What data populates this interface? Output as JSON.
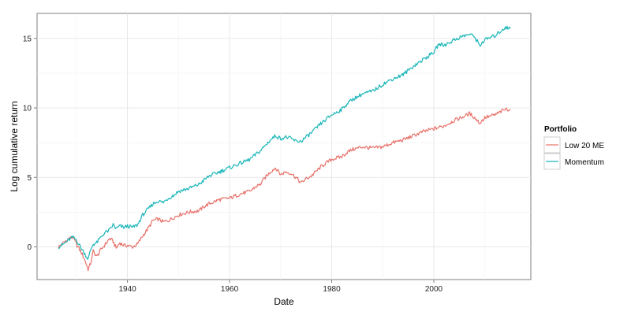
{
  "chart_data": {
    "type": "line",
    "xlabel": "Date",
    "ylabel": "Log cumulative return",
    "xlim": [
      1922.3,
      2019.0
    ],
    "ylim": [
      -2.35,
      16.8
    ],
    "x_ticks": [
      1940,
      1960,
      1980,
      2000
    ],
    "y_ticks": [
      0,
      5,
      10,
      15
    ],
    "grid": true,
    "legend": {
      "title": "Portfolio",
      "placement": "right"
    },
    "series": [
      {
        "name": "Low 20 ME",
        "color": "#e8716a",
        "points": [
          [
            1926.5,
            0.0
          ],
          [
            1927.5,
            0.3
          ],
          [
            1928.5,
            0.6
          ],
          [
            1929.3,
            0.7
          ],
          [
            1930.0,
            0.2
          ],
          [
            1930.8,
            -0.3
          ],
          [
            1931.5,
            -0.8
          ],
          [
            1932.3,
            -1.6
          ],
          [
            1932.8,
            -1.2
          ],
          [
            1933.3,
            -0.3
          ],
          [
            1934.0,
            -0.7
          ],
          [
            1934.8,
            -0.2
          ],
          [
            1935.5,
            0.1
          ],
          [
            1936.5,
            0.6
          ],
          [
            1937.2,
            0.4
          ],
          [
            1937.8,
            -0.1
          ],
          [
            1938.5,
            0.3
          ],
          [
            1939.3,
            0.1
          ],
          [
            1940.0,
            0.1
          ],
          [
            1941.0,
            0.0
          ],
          [
            1942.0,
            0.2
          ],
          [
            1943.0,
            0.8
          ],
          [
            1944.0,
            1.3
          ],
          [
            1945.0,
            1.9
          ],
          [
            1946.0,
            2.0
          ],
          [
            1947.0,
            1.8
          ],
          [
            1948.0,
            1.9
          ],
          [
            1949.0,
            2.1
          ],
          [
            1950.0,
            2.3
          ],
          [
            1952.0,
            2.5
          ],
          [
            1954.0,
            2.6
          ],
          [
            1955.0,
            2.9
          ],
          [
            1956.0,
            3.1
          ],
          [
            1958.0,
            3.4
          ],
          [
            1960.0,
            3.5
          ],
          [
            1962.0,
            3.8
          ],
          [
            1964.0,
            4.0
          ],
          [
            1965.0,
            4.3
          ],
          [
            1966.0,
            4.5
          ],
          [
            1967.0,
            5.0
          ],
          [
            1968.0,
            5.4
          ],
          [
            1969.0,
            5.7
          ],
          [
            1970.0,
            5.2
          ],
          [
            1971.0,
            5.4
          ],
          [
            1972.0,
            5.3
          ],
          [
            1973.0,
            5.0
          ],
          [
            1974.0,
            4.6
          ],
          [
            1975.0,
            4.9
          ],
          [
            1976.0,
            5.1
          ],
          [
            1978.0,
            5.8
          ],
          [
            1980.0,
            6.3
          ],
          [
            1982.0,
            6.5
          ],
          [
            1983.0,
            6.8
          ],
          [
            1984.0,
            7.0
          ],
          [
            1986.0,
            7.2
          ],
          [
            1988.0,
            7.1
          ],
          [
            1990.0,
            7.2
          ],
          [
            1992.0,
            7.5
          ],
          [
            1994.0,
            7.7
          ],
          [
            1996.0,
            8.0
          ],
          [
            1998.0,
            8.3
          ],
          [
            2000.0,
            8.5
          ],
          [
            2002.0,
            8.7
          ],
          [
            2004.0,
            9.1
          ],
          [
            2006.0,
            9.4
          ],
          [
            2007.0,
            9.6
          ],
          [
            2008.0,
            9.3
          ],
          [
            2009.0,
            8.9
          ],
          [
            2010.0,
            9.3
          ],
          [
            2012.0,
            9.5
          ],
          [
            2013.0,
            9.7
          ],
          [
            2014.0,
            9.9
          ],
          [
            2015.0,
            9.9
          ]
        ]
      },
      {
        "name": "Momentum",
        "color": "#19b5b8",
        "points": [
          [
            1926.5,
            0.0
          ],
          [
            1927.5,
            0.2
          ],
          [
            1928.5,
            0.5
          ],
          [
            1929.3,
            0.7
          ],
          [
            1930.0,
            0.5
          ],
          [
            1930.8,
            0.0
          ],
          [
            1931.5,
            -0.4
          ],
          [
            1932.3,
            -0.9
          ],
          [
            1932.8,
            -0.2
          ],
          [
            1933.3,
            0.2
          ],
          [
            1934.0,
            0.3
          ],
          [
            1934.8,
            0.7
          ],
          [
            1935.5,
            1.0
          ],
          [
            1936.5,
            1.2
          ],
          [
            1937.2,
            1.6
          ],
          [
            1937.8,
            1.3
          ],
          [
            1938.5,
            1.5
          ],
          [
            1939.3,
            1.4
          ],
          [
            1940.0,
            1.5
          ],
          [
            1941.0,
            1.4
          ],
          [
            1942.0,
            1.6
          ],
          [
            1943.0,
            2.3
          ],
          [
            1944.0,
            2.7
          ],
          [
            1945.0,
            3.1
          ],
          [
            1946.0,
            3.3
          ],
          [
            1947.0,
            3.2
          ],
          [
            1948.0,
            3.5
          ],
          [
            1949.0,
            3.7
          ],
          [
            1950.0,
            4.0
          ],
          [
            1952.0,
            4.2
          ],
          [
            1954.0,
            4.5
          ],
          [
            1955.0,
            4.8
          ],
          [
            1956.0,
            5.1
          ],
          [
            1958.0,
            5.4
          ],
          [
            1960.0,
            5.7
          ],
          [
            1962.0,
            6.0
          ],
          [
            1964.0,
            6.3
          ],
          [
            1965.0,
            6.6
          ],
          [
            1966.0,
            6.9
          ],
          [
            1967.0,
            7.3
          ],
          [
            1968.0,
            7.7
          ],
          [
            1969.0,
            8.0
          ],
          [
            1970.0,
            7.8
          ],
          [
            1971.0,
            7.9
          ],
          [
            1972.0,
            7.8
          ],
          [
            1973.0,
            7.6
          ],
          [
            1974.0,
            7.6
          ],
          [
            1975.0,
            7.9
          ],
          [
            1976.0,
            8.2
          ],
          [
            1978.0,
            8.9
          ],
          [
            1980.0,
            9.5
          ],
          [
            1982.0,
            9.9
          ],
          [
            1983.0,
            10.3
          ],
          [
            1984.0,
            10.6
          ],
          [
            1986.0,
            11.0
          ],
          [
            1988.0,
            11.2
          ],
          [
            1990.0,
            11.7
          ],
          [
            1992.0,
            12.1
          ],
          [
            1994.0,
            12.4
          ],
          [
            1996.0,
            13.0
          ],
          [
            1998.0,
            13.5
          ],
          [
            2000.0,
            14.0
          ],
          [
            2001.0,
            14.6
          ],
          [
            2002.0,
            14.5
          ],
          [
            2004.0,
            14.9
          ],
          [
            2006.0,
            15.2
          ],
          [
            2007.0,
            15.3
          ],
          [
            2008.0,
            15.1
          ],
          [
            2009.0,
            14.5
          ],
          [
            2010.0,
            14.9
          ],
          [
            2012.0,
            15.2
          ],
          [
            2013.0,
            15.5
          ],
          [
            2014.0,
            15.8
          ],
          [
            2015.0,
            15.7
          ]
        ]
      }
    ]
  }
}
